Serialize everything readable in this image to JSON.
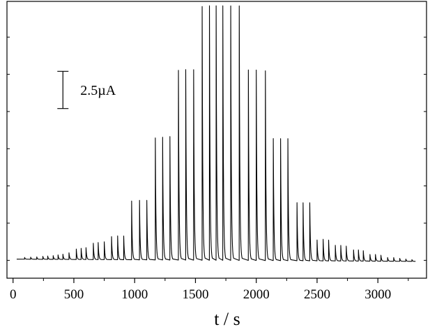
{
  "chart_data": {
    "type": "line",
    "title": "",
    "xlabel": "t  / s",
    "ylabel": "",
    "xlim": [
      -50,
      3400
    ],
    "ylim": [
      -1.2,
      17.4
    ],
    "x_ticks": [
      0,
      500,
      1000,
      1500,
      2000,
      2500,
      3000
    ],
    "x_tick_labels": [
      "0",
      "500",
      "1000",
      "1500",
      "2000",
      "2500",
      "3000"
    ],
    "y_unit": "µA",
    "scale_bar": {
      "label": "2.5µA",
      "value": 2.5,
      "y_from": 12.7,
      "x": 410
    },
    "baseline": {
      "start": 0.08,
      "end": -0.07
    },
    "series": [
      {
        "peaks": [
          {
            "t": 95,
            "h": 0.12
          },
          {
            "t": 145,
            "h": 0.14
          },
          {
            "t": 195,
            "h": 0.16
          },
          {
            "t": 245,
            "h": 0.2
          },
          {
            "t": 285,
            "h": 0.22
          },
          {
            "t": 330,
            "h": 0.25
          },
          {
            "t": 370,
            "h": 0.3
          },
          {
            "t": 410,
            "h": 0.35
          },
          {
            "t": 460,
            "h": 0.45
          },
          {
            "t": 520,
            "h": 0.7
          },
          {
            "t": 560,
            "h": 0.75
          },
          {
            "t": 600,
            "h": 0.8
          },
          {
            "t": 660,
            "h": 1.1
          },
          {
            "t": 700,
            "h": 1.15
          },
          {
            "t": 750,
            "h": 1.2
          },
          {
            "t": 810,
            "h": 1.55
          },
          {
            "t": 860,
            "h": 1.6
          },
          {
            "t": 910,
            "h": 1.6
          },
          {
            "t": 975,
            "h": 3.95
          },
          {
            "t": 1040,
            "h": 4.0
          },
          {
            "t": 1100,
            "h": 4.0
          },
          {
            "t": 1170,
            "h": 8.2
          },
          {
            "t": 1230,
            "h": 8.25
          },
          {
            "t": 1290,
            "h": 8.3
          },
          {
            "t": 1360,
            "h": 12.75
          },
          {
            "t": 1420,
            "h": 12.8
          },
          {
            "t": 1485,
            "h": 12.8
          },
          {
            "t": 1555,
            "h": 17.05
          },
          {
            "t": 1615,
            "h": 17.1
          },
          {
            "t": 1670,
            "h": 17.1
          },
          {
            "t": 1725,
            "h": 17.1
          },
          {
            "t": 1790,
            "h": 17.1
          },
          {
            "t": 1860,
            "h": 17.1
          },
          {
            "t": 1935,
            "h": 12.8
          },
          {
            "t": 2000,
            "h": 12.8
          },
          {
            "t": 2075,
            "h": 12.75
          },
          {
            "t": 2140,
            "h": 8.2
          },
          {
            "t": 2200,
            "h": 8.2
          },
          {
            "t": 2260,
            "h": 8.2
          },
          {
            "t": 2335,
            "h": 3.9
          },
          {
            "t": 2385,
            "h": 3.9
          },
          {
            "t": 2440,
            "h": 3.9
          },
          {
            "t": 2500,
            "h": 1.4
          },
          {
            "t": 2550,
            "h": 1.45
          },
          {
            "t": 2595,
            "h": 1.4
          },
          {
            "t": 2650,
            "h": 1.05
          },
          {
            "t": 2695,
            "h": 1.05
          },
          {
            "t": 2740,
            "h": 1.0
          },
          {
            "t": 2800,
            "h": 0.75
          },
          {
            "t": 2840,
            "h": 0.75
          },
          {
            "t": 2880,
            "h": 0.7
          },
          {
            "t": 2935,
            "h": 0.45
          },
          {
            "t": 2980,
            "h": 0.45
          },
          {
            "t": 3025,
            "h": 0.4
          },
          {
            "t": 3080,
            "h": 0.25
          },
          {
            "t": 3130,
            "h": 0.25
          },
          {
            "t": 3180,
            "h": 0.2
          },
          {
            "t": 3230,
            "h": 0.15
          },
          {
            "t": 3280,
            "h": 0.12
          }
        ],
        "x_start": 30,
        "x_end": 3310
      }
    ]
  }
}
